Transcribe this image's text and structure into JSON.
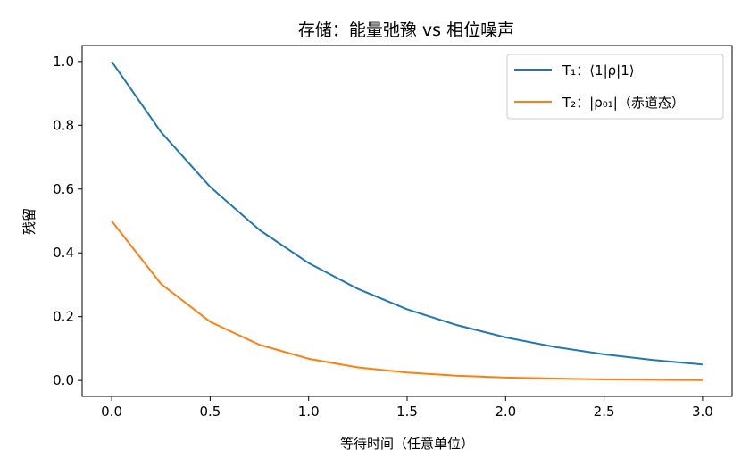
{
  "chart_data": {
    "type": "line",
    "title": "存储：能量弛豫 vs 相位噪声",
    "xlabel": "等待时间（任意单位）",
    "ylabel": "残留",
    "xlim": [
      -0.15,
      3.15
    ],
    "ylim": [
      -0.05,
      1.05
    ],
    "xticks": [
      0.0,
      0.5,
      1.0,
      1.5,
      2.0,
      2.5,
      3.0
    ],
    "xtick_labels": [
      "0.0",
      "0.5",
      "1.0",
      "1.5",
      "2.0",
      "2.5",
      "3.0"
    ],
    "yticks": [
      0.0,
      0.2,
      0.4,
      0.6,
      0.8,
      1.0
    ],
    "ytick_labels": [
      "0.0",
      "0.2",
      "0.4",
      "0.6",
      "0.8",
      "1.0"
    ],
    "grid": false,
    "legend_position": "top-right",
    "series": [
      {
        "name": "T₁：⟨1|ρ|1⟩",
        "color": "#1f77b4",
        "x": [
          0.0,
          0.25,
          0.5,
          0.75,
          1.0,
          1.25,
          1.5,
          1.75,
          2.0,
          2.25,
          2.5,
          2.75,
          3.0
        ],
        "y": [
          1.0,
          0.779,
          0.607,
          0.472,
          0.368,
          0.287,
          0.223,
          0.174,
          0.135,
          0.105,
          0.082,
          0.064,
          0.05
        ]
      },
      {
        "name": "T₂：|ρ₀₁|（赤道态）",
        "color": "#ff7f0e",
        "x": [
          0.0,
          0.25,
          0.5,
          0.75,
          1.0,
          1.25,
          1.5,
          1.75,
          2.0,
          2.25,
          2.5,
          2.75,
          3.0
        ],
        "y": [
          0.5,
          0.303,
          0.184,
          0.112,
          0.068,
          0.041,
          0.025,
          0.015,
          0.009,
          0.006,
          0.003,
          0.002,
          0.001
        ]
      }
    ]
  }
}
